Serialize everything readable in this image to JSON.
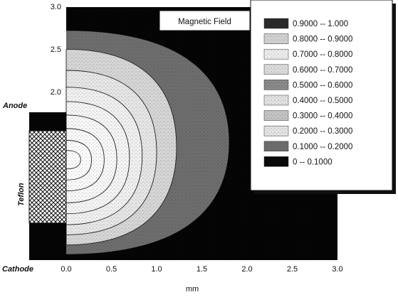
{
  "chart_data": {
    "type": "heatmap",
    "title": "Magnetic Field",
    "xlabel": "mm",
    "ylabel": "",
    "xlim": [
      0,
      3.0
    ],
    "ylim": [
      0,
      3.0
    ],
    "x_ticks": [
      "0.0",
      "0.5",
      "1.0",
      "1.5",
      "2.0",
      "2.5",
      "3.0"
    ],
    "y_ticks": [
      "2.0",
      "2.5",
      "3.0"
    ],
    "side_labels": {
      "anode": "Anode",
      "teflon": "Teflon",
      "cathode": "Cathode"
    },
    "legend_position": "top-right",
    "levels": [
      {
        "range": "0.9000  --  1.000",
        "fill": "#2a2a2a",
        "pattern": "dark"
      },
      {
        "range": "0.8000  --  0.9000",
        "fill": "#d2d2d2",
        "pattern": "light-mottled"
      },
      {
        "range": "0.7000  --  0.8000",
        "fill": "#ececec",
        "pattern": "fine"
      },
      {
        "range": "0.6000  --  0.7000",
        "fill": "#dcdcdc",
        "pattern": "light-mottled"
      },
      {
        "range": "0.5000  --  0.6000",
        "fill": "#8a8a8a",
        "pattern": "mid"
      },
      {
        "range": "0.4000  --  0.5000",
        "fill": "#e2e2e2",
        "pattern": "fine"
      },
      {
        "range": "0.3000  --  0.4000",
        "fill": "#c4c4c4",
        "pattern": "mid-light"
      },
      {
        "range": "0.2000  --  0.3000",
        "fill": "#e4e4e4",
        "pattern": "fine"
      },
      {
        "range": "0.1000  --  0.2000",
        "fill": "#6e6e6e",
        "pattern": "dark-mottled"
      },
      {
        "range": "0  --  0.1000",
        "fill": "#0a0a0a",
        "pattern": "solid"
      }
    ],
    "contours": [
      {
        "xmax": 1.8,
        "ytop": 2.72,
        "ybot": 0.07,
        "fill": "#6e6e6e"
      },
      {
        "xmax": 1.22,
        "ytop": 2.5,
        "ybot": 0.18,
        "fill": "#d6d6d6"
      },
      {
        "xmax": 1.0,
        "ytop": 2.25,
        "ybot": 0.3,
        "fill": "#e6e6e6"
      },
      {
        "xmax": 0.84,
        "ytop": 2.05,
        "ybot": 0.42,
        "fill": "#f0f0f0"
      },
      {
        "xmax": 0.7,
        "ytop": 1.88,
        "ybot": 0.55,
        "fill": "#f5f5f5"
      },
      {
        "xmax": 0.56,
        "ytop": 1.72,
        "ybot": 0.68,
        "fill": "#f8f8f8"
      },
      {
        "xmax": 0.42,
        "ytop": 1.56,
        "ybot": 0.82,
        "fill": "#fafafa"
      },
      {
        "xmax": 0.28,
        "ytop": 1.42,
        "ybot": 0.95,
        "fill": "#fcfcfc"
      },
      {
        "xmax": 0.16,
        "ytop": 1.3,
        "ybot": 1.08,
        "fill": "#fdfdfd"
      }
    ],
    "teflon_region": {
      "y_top": 1.64,
      "y_bot": 0.6
    },
    "grid": false
  }
}
